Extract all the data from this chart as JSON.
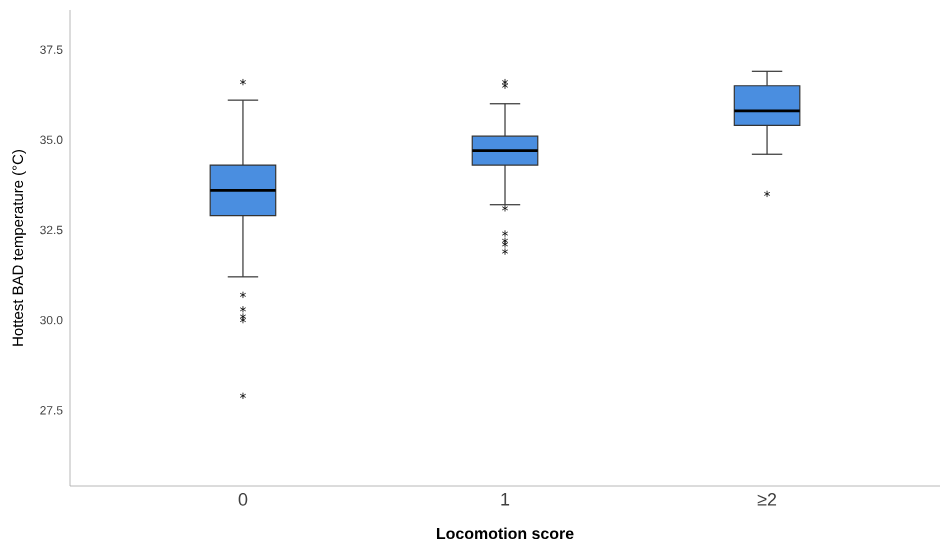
{
  "chart_data": {
    "type": "box",
    "xlabel": "Locomotion score",
    "ylabel": "Hottest BAD temperature (°C)",
    "categories": [
      "0",
      "1",
      "≥2"
    ],
    "color": "#4a8ee0",
    "boxes": [
      {
        "low": 31.2,
        "q1": 32.9,
        "median": 33.6,
        "q3": 34.3,
        "high": 36.1,
        "outliers": [
          36.6,
          30.7,
          30.3,
          30.1,
          30.0,
          27.9
        ]
      },
      {
        "low": 33.2,
        "q1": 34.3,
        "median": 34.7,
        "q3": 35.1,
        "high": 36.0,
        "outliers": [
          36.6,
          36.5,
          33.1,
          32.4,
          32.2,
          32.1,
          31.9
        ]
      },
      {
        "low": 34.6,
        "q1": 35.4,
        "median": 35.8,
        "q3": 36.5,
        "high": 36.9,
        "outliers": [
          33.5
        ]
      }
    ],
    "ylim": [
      25.4,
      38.6
    ],
    "yticks": [
      27.5,
      {
        "value": 30,
        "label": "30.0"
      },
      32.5,
      {
        "value": 35,
        "label": "35.0"
      },
      37.5
    ],
    "marker": "star",
    "grid": false
  }
}
